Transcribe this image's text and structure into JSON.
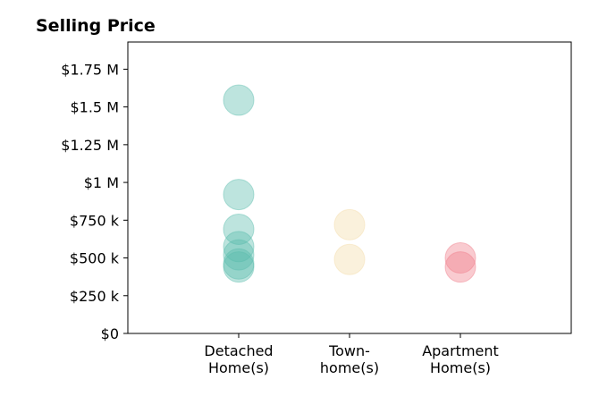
{
  "chart_data": {
    "type": "scatter",
    "title": "Selling Price",
    "xlabel": "",
    "ylabel": "",
    "categories": [
      {
        "label_lines": [
          "Detached",
          "Home(s)"
        ]
      },
      {
        "label_lines": [
          "Town-",
          "home(s)"
        ]
      },
      {
        "label_lines": [
          "Apartment",
          "Home(s)"
        ]
      }
    ],
    "y_ticks": [
      {
        "value": 0,
        "label": "$0"
      },
      {
        "value": 250000,
        "label": "$250 k"
      },
      {
        "value": 500000,
        "label": "$500 k"
      },
      {
        "value": 750000,
        "label": "$750 k"
      },
      {
        "value": 1000000,
        "label": "$1 M"
      },
      {
        "value": 1250000,
        "label": "$1.25 M"
      },
      {
        "value": 1500000,
        "label": "$1.5 M"
      },
      {
        "value": 1750000,
        "label": "$1.75 M"
      }
    ],
    "ylim": [
      0,
      1930000
    ],
    "xlim": [
      -1,
      3
    ],
    "grid": false,
    "series": [
      {
        "category_index": 0,
        "color": "#5bbcad",
        "values": [
          1545000,
          920000,
          690000,
          575000,
          520000,
          460000,
          440000
        ]
      },
      {
        "category_index": 1,
        "color": "#f3dca8",
        "values": [
          720000,
          490000
        ]
      },
      {
        "category_index": 2,
        "color": "#ef7c8a",
        "values": [
          500000,
          440000
        ]
      }
    ]
  }
}
